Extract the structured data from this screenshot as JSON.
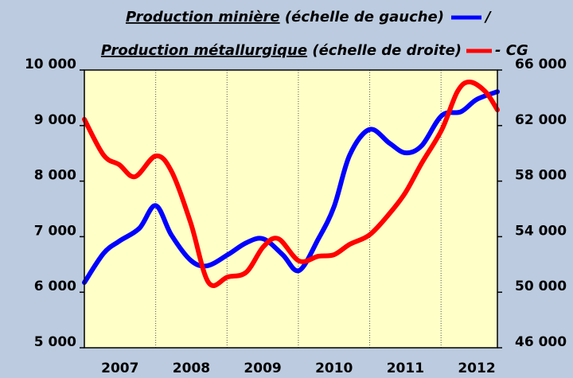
{
  "chart_data": {
    "type": "line",
    "series": [
      {
        "name": "Production minière",
        "note": "(échelle de gauche)",
        "legend_suffix": "/",
        "color": "#0000ff",
        "axis": "y",
        "x": [
          2007.0,
          2007.27,
          2007.49,
          2007.77,
          2008.0,
          2008.22,
          2008.49,
          2008.72,
          2009.01,
          2009.27,
          2009.51,
          2009.78,
          2010.01,
          2010.28,
          2010.5,
          2010.72,
          2011.0,
          2011.28,
          2011.5,
          2011.73,
          2012.01,
          2012.28,
          2012.5,
          2012.79
        ],
        "values": [
          6175,
          6700,
          6920,
          7150,
          7560,
          7030,
          6575,
          6475,
          6675,
          6890,
          6960,
          6675,
          6390,
          6960,
          7540,
          8470,
          8930,
          8680,
          8510,
          8640,
          9180,
          9250,
          9470,
          9610
        ]
      },
      {
        "name": "Production métallurgique",
        "note": "(échelle de droite)",
        "legend_suffix": "- CG",
        "color": "#ff0000",
        "axis": "y2",
        "x": [
          2007.0,
          2007.27,
          2007.49,
          2007.71,
          2008.0,
          2008.22,
          2008.49,
          2008.74,
          2009.01,
          2009.27,
          2009.51,
          2009.72,
          2010.01,
          2010.28,
          2010.5,
          2010.72,
          2011.0,
          2011.28,
          2011.5,
          2011.73,
          2012.01,
          2012.23,
          2012.4,
          2012.62,
          2012.79
        ],
        "values": [
          62450,
          59870,
          59180,
          58320,
          59810,
          58720,
          55000,
          50700,
          51100,
          51440,
          53280,
          53850,
          52250,
          52590,
          52700,
          53450,
          54140,
          55680,
          57170,
          59300,
          61700,
          64450,
          65140,
          64450,
          63130
        ]
      }
    ],
    "xlim": [
      2007,
      2012.79
    ],
    "xticks": [
      {
        "value": 2007.5,
        "label": "2007"
      },
      {
        "value": 2008.5,
        "label": "2008"
      },
      {
        "value": 2009.5,
        "label": "2009"
      },
      {
        "value": 2010.5,
        "label": "2010"
      },
      {
        "value": 2011.5,
        "label": "2011"
      },
      {
        "value": 2012.5,
        "label": "2012"
      }
    ],
    "xgrid": [
      2008,
      2009,
      2010,
      2011,
      2012
    ],
    "ylim": [
      5000,
      10000
    ],
    "yticks": [
      {
        "value": 5000,
        "label": "5 000"
      },
      {
        "value": 6000,
        "label": "6 000"
      },
      {
        "value": 7000,
        "label": "7 000"
      },
      {
        "value": 8000,
        "label": "8 000"
      },
      {
        "value": 9000,
        "label": "9 000"
      },
      {
        "value": 10000,
        "label": "10 000"
      }
    ],
    "y2lim": [
      46000,
      66000
    ],
    "y2ticks": [
      {
        "value": 46000,
        "label": "46 000"
      },
      {
        "value": 50000,
        "label": "50 000"
      },
      {
        "value": 54000,
        "label": "54 000"
      },
      {
        "value": 58000,
        "label": "58 000"
      },
      {
        "value": 62000,
        "label": "62 000"
      },
      {
        "value": 66000,
        "label": "66 000"
      }
    ]
  }
}
